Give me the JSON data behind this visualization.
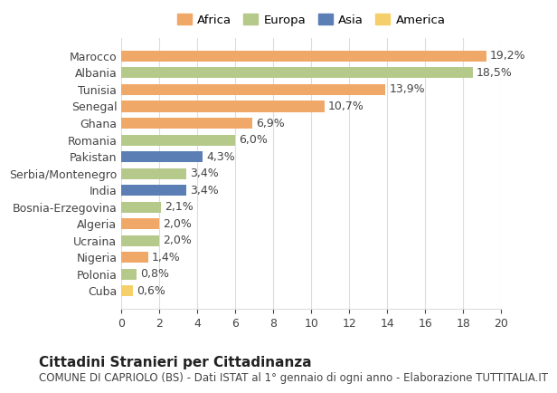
{
  "countries": [
    "Marocco",
    "Albania",
    "Tunisia",
    "Senegal",
    "Ghana",
    "Romania",
    "Pakistan",
    "Serbia/Montenegro",
    "India",
    "Bosnia-Erzegovina",
    "Algeria",
    "Ucraina",
    "Nigeria",
    "Polonia",
    "Cuba"
  ],
  "values": [
    19.2,
    18.5,
    13.9,
    10.7,
    6.9,
    6.0,
    4.3,
    3.4,
    3.4,
    2.1,
    2.0,
    2.0,
    1.4,
    0.8,
    0.6
  ],
  "labels": [
    "19,2%",
    "18,5%",
    "13,9%",
    "10,7%",
    "6,9%",
    "6,0%",
    "4,3%",
    "3,4%",
    "3,4%",
    "2,1%",
    "2,0%",
    "2,0%",
    "1,4%",
    "0,8%",
    "0,6%"
  ],
  "continents": [
    "Africa",
    "Europa",
    "Africa",
    "Africa",
    "Africa",
    "Europa",
    "Asia",
    "Europa",
    "Asia",
    "Europa",
    "Africa",
    "Europa",
    "Africa",
    "Europa",
    "America"
  ],
  "colors": {
    "Africa": "#F0A868",
    "Europa": "#B5C98A",
    "Asia": "#5B7FB5",
    "America": "#F5D06A"
  },
  "legend_order": [
    "Africa",
    "Europa",
    "Asia",
    "America"
  ],
  "title": "Cittadini Stranieri per Cittadinanza",
  "subtitle": "COMUNE DI CAPRIOLO (BS) - Dati ISTAT al 1° gennaio di ogni anno - Elaborazione TUTTITALIA.IT",
  "xlim": [
    0,
    20
  ],
  "xticks": [
    0,
    2,
    4,
    6,
    8,
    10,
    12,
    14,
    16,
    18,
    20
  ],
  "background_color": "#ffffff",
  "grid_color": "#dddddd",
  "bar_height": 0.65,
  "label_fontsize": 9,
  "tick_fontsize": 9,
  "title_fontsize": 11,
  "subtitle_fontsize": 8.5
}
